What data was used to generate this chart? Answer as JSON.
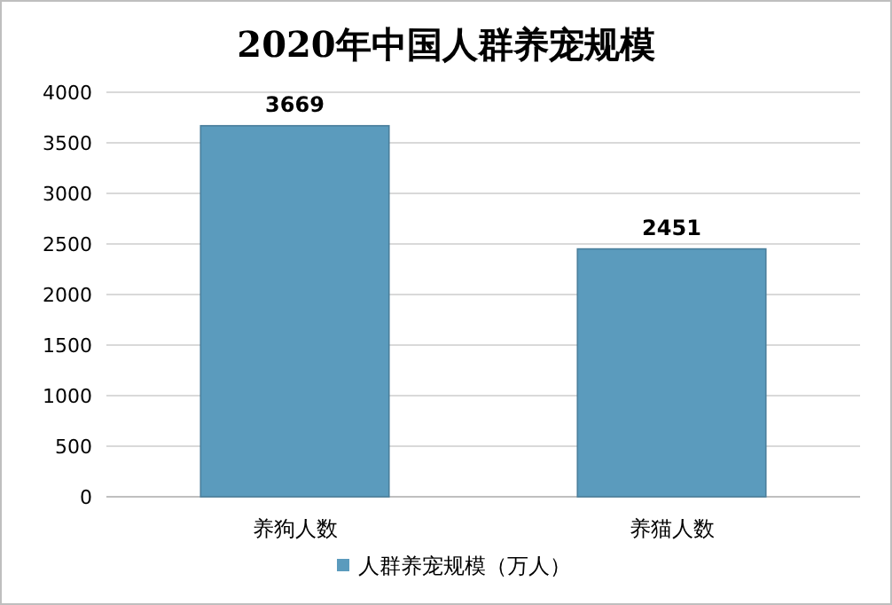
{
  "chart_data": {
    "type": "bar",
    "title": "2020年中国人群养宠规模",
    "categories": [
      "养狗人数",
      "养猫人数"
    ],
    "series": [
      {
        "name": "人群养宠规模（万人）",
        "color": "#5b9bbd",
        "values": [
          3669,
          2451
        ]
      }
    ],
    "ylim": [
      0,
      4000
    ],
    "yticks": [
      0,
      500,
      1000,
      1500,
      2000,
      2500,
      3000,
      3500,
      4000
    ],
    "grid": "y",
    "legend": "bottom",
    "data_labels": true
  }
}
